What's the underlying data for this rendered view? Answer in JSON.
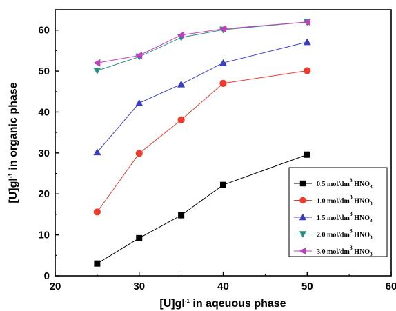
{
  "chart_data": {
    "type": "line",
    "title": "",
    "xlabel": "[U]gl-1 in aqeuous phase",
    "ylabel": "[U]gl-1 in organic phase",
    "xlim": [
      20,
      60
    ],
    "ylim": [
      0,
      65
    ],
    "xticks": [
      20,
      30,
      40,
      50,
      60
    ],
    "yticks": [
      0,
      10,
      20,
      30,
      40,
      50,
      60
    ],
    "grid": false,
    "legend_position": "bottom-right",
    "series": [
      {
        "name": "0.5 mol/dm3 HNO3",
        "label_main": "0.5 mol/dm",
        "label_sup": "3",
        "label_acid": "HNO",
        "label_sub": "3",
        "color": "#000000",
        "marker": "square",
        "x": [
          25,
          30,
          35,
          40,
          50
        ],
        "y": [
          3,
          9.2,
          14.8,
          22.2,
          29.6
        ]
      },
      {
        "name": "1.0 mol/dm3 HNO3",
        "label_main": "1.0 mol/dm",
        "label_sup": "3",
        "label_acid": "HNO",
        "label_sub": "3",
        "color": "#ef3b2c",
        "marker": "circle",
        "x": [
          25,
          30,
          35,
          40,
          50
        ],
        "y": [
          15.6,
          29.9,
          38.1,
          47,
          50.1
        ]
      },
      {
        "name": "1.5 mol/dm3 HNO3",
        "label_main": "1.5 mol/dm",
        "label_sup": "3",
        "label_acid": "HNO",
        "label_sub": "3",
        "color": "#3a3ec4",
        "marker": "triangle-up",
        "x": [
          25,
          30,
          35,
          40,
          50
        ],
        "y": [
          30.2,
          42.2,
          46.8,
          52,
          57.1
        ]
      },
      {
        "name": "2.0 mol/dm3 HNO3",
        "label_main": "2.0 mol/dm",
        "label_sup": "3",
        "label_acid": "HNO",
        "label_sub": "3",
        "color": "#2e8b80",
        "marker": "triangle-down",
        "x": [
          25,
          30,
          35,
          40,
          50
        ],
        "y": [
          50.1,
          53.5,
          58.2,
          60.1,
          62
        ]
      },
      {
        "name": "3.0 mol/dm3 HNO3",
        "label_main": "3.0 mol/dm",
        "label_sup": "3",
        "label_acid": "HNO",
        "label_sub": "3",
        "color": "#c040c0",
        "marker": "triangle-left",
        "x": [
          25,
          30,
          35,
          40,
          50
        ],
        "y": [
          52,
          53.8,
          58.8,
          60.3,
          62
        ]
      }
    ]
  }
}
